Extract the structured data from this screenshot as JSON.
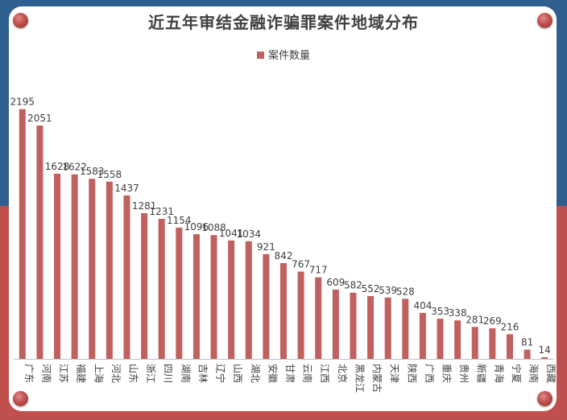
{
  "chart_data": {
    "type": "bar",
    "title": "近五年审结金融诈骗罪案件地域分布",
    "legend": [
      "案件数量"
    ],
    "legend_position": "top",
    "bar_color": "#c0605f",
    "grid": false,
    "ylim": [
      0,
      2200
    ],
    "categories": [
      "广东",
      "河南",
      "江苏",
      "福建",
      "上海",
      "河北",
      "山东",
      "浙江",
      "四川",
      "湖南",
      "吉林",
      "辽宁",
      "山西",
      "湖北",
      "安徽",
      "甘肃",
      "云南",
      "江西",
      "北京",
      "黑龙江",
      "内蒙古",
      "天津",
      "陕西",
      "广西",
      "重庆",
      "贵州",
      "新疆",
      "青海",
      "宁夏",
      "海南",
      "西藏"
    ],
    "series": [
      {
        "name": "案件数量",
        "values": [
          2195,
          2051,
          1628,
          1622,
          1583,
          1558,
          1437,
          1281,
          1231,
          1154,
          1096,
          1088,
          1041,
          1034,
          921,
          842,
          767,
          717,
          609,
          582,
          552,
          539,
          528,
          404,
          353,
          338,
          281,
          269,
          216,
          81,
          14
        ]
      }
    ]
  }
}
